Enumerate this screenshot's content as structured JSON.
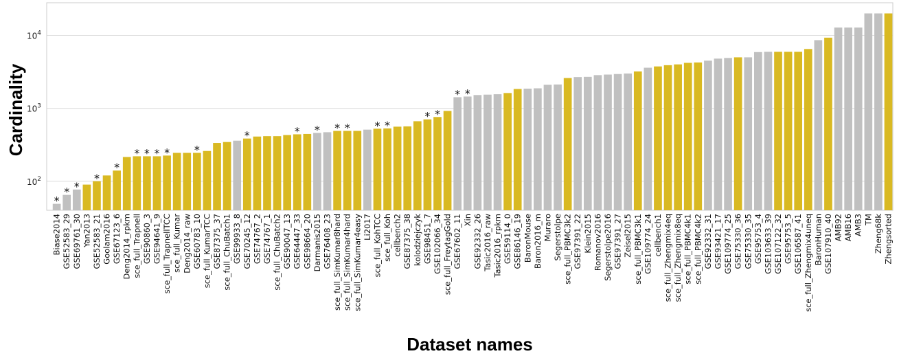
{
  "chart_data": {
    "type": "bar",
    "title": "",
    "xlabel": "Dataset names",
    "ylabel": "Cardinality",
    "yscale": "log",
    "ylim": [
      40,
      28000
    ],
    "yticks": [
      {
        "value": 100,
        "base": "10",
        "exp": "2"
      },
      {
        "value": 1000,
        "base": "10",
        "exp": "3"
      },
      {
        "value": 10000,
        "base": "10",
        "exp": "4"
      }
    ],
    "grid": "horizontal",
    "legend": "none",
    "colors": {
      "yellow": "#d9b922",
      "gray": "#c0c0c0",
      "grid": "#dcdcdc",
      "frame": "#cccccc"
    },
    "annotation_symbol": "*",
    "bars": [
      {
        "name": "Biase2014",
        "value": 49,
        "color": "gray",
        "star": true
      },
      {
        "name": "GSE52583_29",
        "value": 65,
        "color": "gray",
        "star": true
      },
      {
        "name": "GSE69761_30",
        "value": 77,
        "color": "gray",
        "star": true
      },
      {
        "name": "Yan2013",
        "value": 90,
        "color": "yellow",
        "star": false
      },
      {
        "name": "GSE52583_21",
        "value": 100,
        "color": "yellow",
        "star": true
      },
      {
        "name": "Goolam2016",
        "value": 120,
        "color": "yellow",
        "star": false
      },
      {
        "name": "GSE67123_6",
        "value": 140,
        "color": "yellow",
        "star": true
      },
      {
        "name": "Deng2014_rpkm",
        "value": 215,
        "color": "yellow",
        "star": false
      },
      {
        "name": "sce_full_Trapnell",
        "value": 220,
        "color": "yellow",
        "star": true
      },
      {
        "name": "GSE90860_3",
        "value": 220,
        "color": "yellow",
        "star": true
      },
      {
        "name": "GSE94641_9",
        "value": 220,
        "color": "yellow",
        "star": true
      },
      {
        "name": "sce_full_TrapnellTCC",
        "value": 225,
        "color": "yellow",
        "star": true
      },
      {
        "name": "sce_full_Kumar",
        "value": 245,
        "color": "yellow",
        "star": false
      },
      {
        "name": "Deng2014_raw",
        "value": 245,
        "color": "yellow",
        "star": false
      },
      {
        "name": "GSE60783_10",
        "value": 245,
        "color": "yellow",
        "star": true
      },
      {
        "name": "sce_full_KumarTCC",
        "value": 260,
        "color": "yellow",
        "star": false
      },
      {
        "name": "GSE87375_37",
        "value": 335,
        "color": "yellow",
        "star": false
      },
      {
        "name": "sce_full_ChuBatch1",
        "value": 345,
        "color": "yellow",
        "star": false
      },
      {
        "name": "GSE99933_8",
        "value": 360,
        "color": "gray",
        "star": false
      },
      {
        "name": "GSE70245_12",
        "value": 385,
        "color": "yellow",
        "star": true
      },
      {
        "name": "GSE74767_2",
        "value": 410,
        "color": "yellow",
        "star": false
      },
      {
        "name": "GSE74767_1",
        "value": 415,
        "color": "yellow",
        "star": false
      },
      {
        "name": "sce_full_ChuBatch2",
        "value": 415,
        "color": "yellow",
        "star": false
      },
      {
        "name": "GSE90047_13",
        "value": 430,
        "color": "yellow",
        "star": false
      },
      {
        "name": "GSE64447_33",
        "value": 440,
        "color": "yellow",
        "star": true
      },
      {
        "name": "GSE98664_20",
        "value": 445,
        "color": "yellow",
        "star": false
      },
      {
        "name": "Darmanis2015",
        "value": 460,
        "color": "gray",
        "star": true
      },
      {
        "name": "GSE76408_23",
        "value": 470,
        "color": "gray",
        "star": false
      },
      {
        "name": "sce_full_SimKumar8hard",
        "value": 490,
        "color": "yellow",
        "star": true
      },
      {
        "name": "sce_full_SimKumar4hard",
        "value": 490,
        "color": "yellow",
        "star": true
      },
      {
        "name": "sce_full_SimKumar4easy",
        "value": 490,
        "color": "yellow",
        "star": false
      },
      {
        "name": "Li2017",
        "value": 510,
        "color": "gray",
        "star": false
      },
      {
        "name": "sce_full_KohTCC",
        "value": 525,
        "color": "yellow",
        "star": true
      },
      {
        "name": "sce_full_Koh",
        "value": 530,
        "color": "yellow",
        "star": true
      },
      {
        "name": "cellbench2",
        "value": 560,
        "color": "yellow",
        "star": false
      },
      {
        "name": "GSE87375_38",
        "value": 565,
        "color": "yellow",
        "star": false
      },
      {
        "name": "kolodziejczyk",
        "value": 665,
        "color": "yellow",
        "star": false
      },
      {
        "name": "GSE98451_7",
        "value": 705,
        "color": "yellow",
        "star": true
      },
      {
        "name": "GSE102066_34",
        "value": 760,
        "color": "yellow",
        "star": true
      },
      {
        "name": "sce_full_FreytagGold",
        "value": 920,
        "color": "yellow",
        "star": false
      },
      {
        "name": "GSE67602_11",
        "value": 1420,
        "color": "gray",
        "star": true
      },
      {
        "name": "Xin",
        "value": 1450,
        "color": "gray",
        "star": true
      },
      {
        "name": "GSE92332_26",
        "value": 1520,
        "color": "gray",
        "star": false
      },
      {
        "name": "Tasic2016_raw",
        "value": 1540,
        "color": "gray",
        "star": false
      },
      {
        "name": "Tasic2016_rpkm",
        "value": 1560,
        "color": "gray",
        "star": false
      },
      {
        "name": "GSE59114_0",
        "value": 1620,
        "color": "yellow",
        "star": false
      },
      {
        "name": "GSE86146_19",
        "value": 1840,
        "color": "yellow",
        "star": false
      },
      {
        "name": "BaronMouse",
        "value": 1860,
        "color": "gray",
        "star": false
      },
      {
        "name": "Baron2016_m",
        "value": 1880,
        "color": "gray",
        "star": false
      },
      {
        "name": "Muraro",
        "value": 2100,
        "color": "gray",
        "star": false
      },
      {
        "name": "Segerstolpe",
        "value": 2120,
        "color": "gray",
        "star": false
      },
      {
        "name": "sce_full_PBMC3k2",
        "value": 2600,
        "color": "yellow",
        "star": false
      },
      {
        "name": "GSE97391_22",
        "value": 2680,
        "color": "gray",
        "star": false
      },
      {
        "name": "Klein2015",
        "value": 2700,
        "color": "gray",
        "star": false
      },
      {
        "name": "Romanov2016",
        "value": 2850,
        "color": "gray",
        "star": false
      },
      {
        "name": "Segerstolpe2016",
        "value": 2900,
        "color": "gray",
        "star": false
      },
      {
        "name": "GSE97391_27",
        "value": 2950,
        "color": "gray",
        "star": false
      },
      {
        "name": "Zeisel2015",
        "value": 3000,
        "color": "gray",
        "star": false
      },
      {
        "name": "sce_full_PBMC3k1",
        "value": 3200,
        "color": "yellow",
        "star": false
      },
      {
        "name": "GSE109774_24",
        "value": 3600,
        "color": "gray",
        "star": false
      },
      {
        "name": "cellbench1",
        "value": 3750,
        "color": "yellow",
        "star": false
      },
      {
        "name": "sce_full_Zhengmix4eq",
        "value": 3900,
        "color": "yellow",
        "star": false
      },
      {
        "name": "sce_full_Zhengmix8eq",
        "value": 4000,
        "color": "yellow",
        "star": false
      },
      {
        "name": "sce_full_PBMC4k1",
        "value": 4200,
        "color": "yellow",
        "star": false
      },
      {
        "name": "sce_full_PBMC4k2",
        "value": 4250,
        "color": "yellow",
        "star": false
      },
      {
        "name": "GSE92332_31",
        "value": 4500,
        "color": "gray",
        "star": false
      },
      {
        "name": "GSE93421_17",
        "value": 4800,
        "color": "gray",
        "star": false
      },
      {
        "name": "GSE109774_25",
        "value": 4900,
        "color": "gray",
        "star": false
      },
      {
        "name": "GSE75330_36",
        "value": 5000,
        "color": "yellow",
        "star": false
      },
      {
        "name": "GSE75330_35",
        "value": 5000,
        "color": "gray",
        "star": false
      },
      {
        "name": "GSE95753_4",
        "value": 5900,
        "color": "gray",
        "star": false
      },
      {
        "name": "GSE103633_39",
        "value": 5950,
        "color": "gray",
        "star": false
      },
      {
        "name": "GSE107122_32",
        "value": 5950,
        "color": "yellow",
        "star": false
      },
      {
        "name": "GSE95753_5",
        "value": 5950,
        "color": "yellow",
        "star": false
      },
      {
        "name": "GSE106587_41",
        "value": 5950,
        "color": "yellow",
        "star": false
      },
      {
        "name": "sce_full_Zhengmix4uneq",
        "value": 6500,
        "color": "yellow",
        "star": false
      },
      {
        "name": "BaronHuman",
        "value": 8600,
        "color": "gray",
        "star": false
      },
      {
        "name": "GSE107910_40",
        "value": 9300,
        "color": "yellow",
        "star": false
      },
      {
        "name": "AMB92",
        "value": 12800,
        "color": "gray",
        "star": false
      },
      {
        "name": "AMB16",
        "value": 12800,
        "color": "gray",
        "star": false
      },
      {
        "name": "AMB3",
        "value": 12800,
        "color": "gray",
        "star": false
      },
      {
        "name": "TM",
        "value": 20000,
        "color": "gray",
        "star": false
      },
      {
        "name": "Zheng68k",
        "value": 20000,
        "color": "gray",
        "star": false
      },
      {
        "name": "Zhengsorted",
        "value": 20000,
        "color": "yellow",
        "star": false
      }
    ]
  }
}
